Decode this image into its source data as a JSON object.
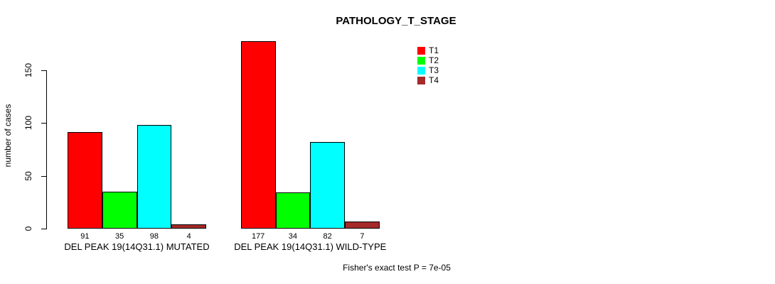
{
  "chart_data": {
    "type": "bar",
    "title": "PATHOLOGY_T_STAGE",
    "ylabel": "number of cases",
    "xlabel": "",
    "categories": [
      "DEL PEAK 19(14Q31.1) MUTATED",
      "DEL PEAK 19(14Q31.1) WILD-TYPE"
    ],
    "series": [
      {
        "name": "T1",
        "color": "#ff0000",
        "values": [
          91,
          177
        ]
      },
      {
        "name": "T2",
        "color": "#00ff00",
        "values": [
          35,
          34
        ]
      },
      {
        "name": "T3",
        "color": "#00ffff",
        "values": [
          98,
          82
        ]
      },
      {
        "name": "T4",
        "color": "#a52a2a",
        "values": [
          4,
          7
        ]
      }
    ],
    "yticks": [
      0,
      50,
      100,
      150
    ],
    "ylim": [
      0,
      180
    ],
    "grid": false,
    "legend_position": "top-right",
    "legend_entries": [
      "T1",
      "T2",
      "T3",
      "T4"
    ],
    "annotation": "Fisher's exact test P = 7e-05",
    "background_color": "#ffffff",
    "axis_color": "#000000"
  }
}
